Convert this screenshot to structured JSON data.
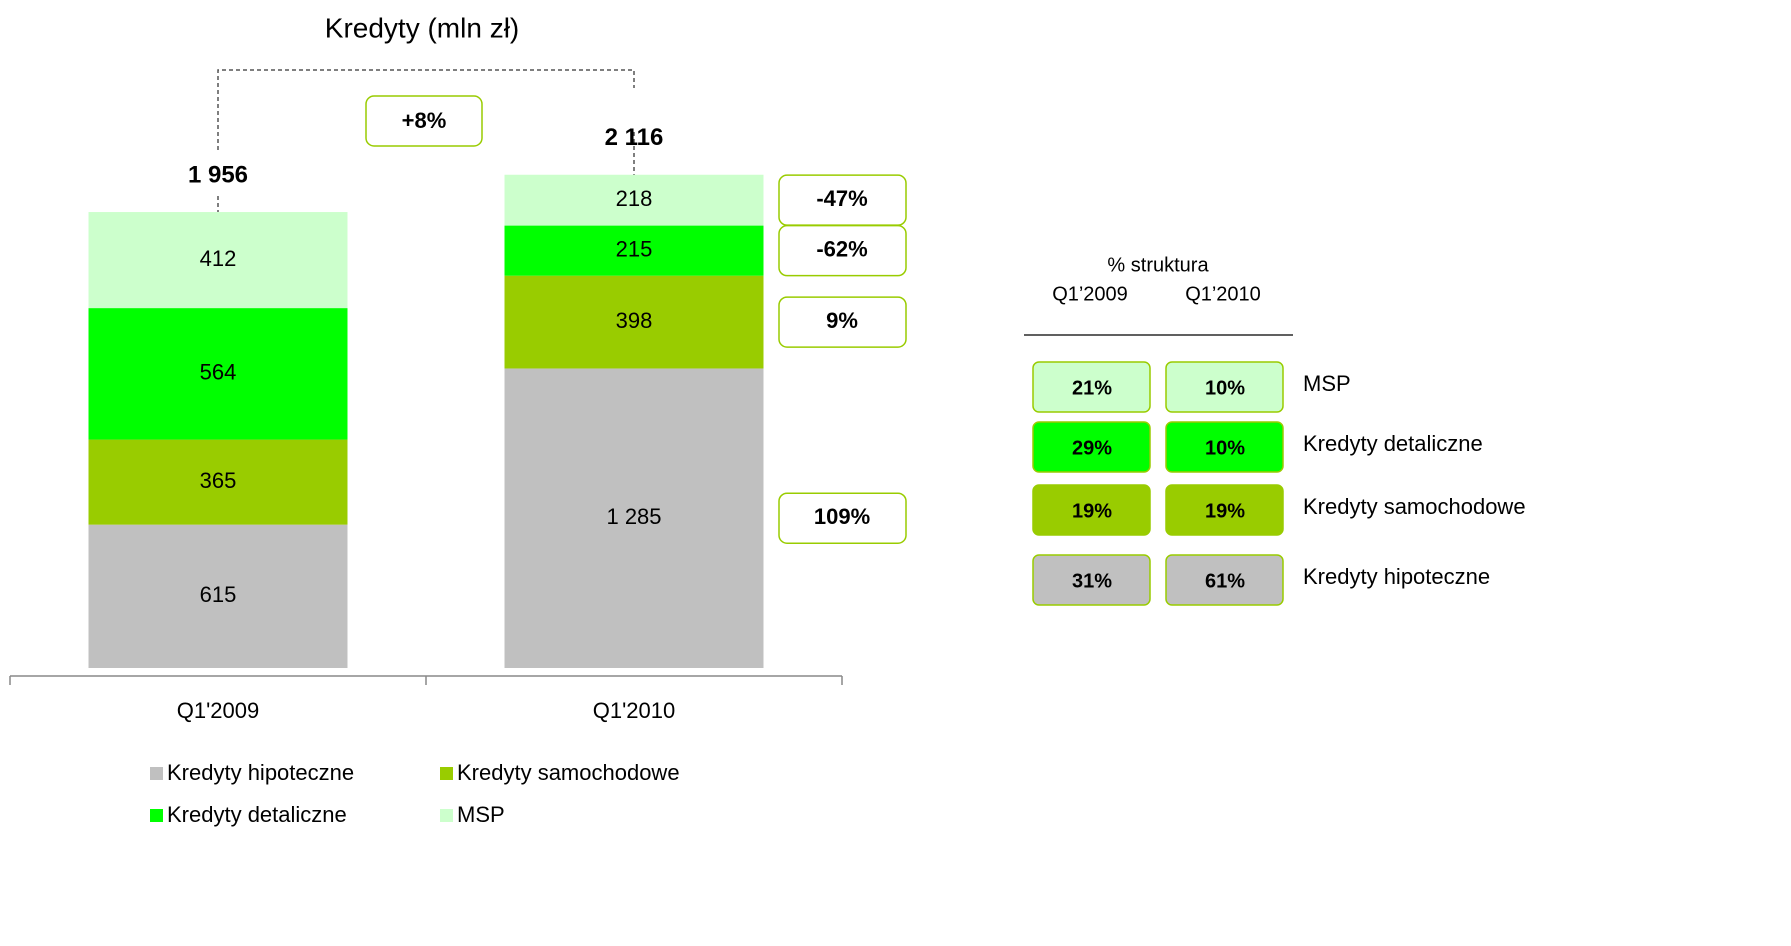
{
  "chart_data": {
    "type": "stacked_bar",
    "title": "Kredyty (mln zł)",
    "categories": [
      "Q1'2009",
      "Q1'2010"
    ],
    "series": [
      {
        "name": "Kredyty hipoteczne",
        "color": "#c0c0c0",
        "values": [
          615,
          1285
        ],
        "value_labels": [
          "615",
          "1 285"
        ],
        "change": "109%"
      },
      {
        "name": "Kredyty samochodowe",
        "color": "#99cc00",
        "values": [
          365,
          398
        ],
        "change": "9%"
      },
      {
        "name": "Kredyty detaliczne",
        "color": "#00ff00",
        "values": [
          564,
          215
        ],
        "change": "-62%"
      },
      {
        "name": "MSP",
        "color": "#ccffcc",
        "values": [
          412,
          218
        ],
        "change": "-47%"
      }
    ],
    "totals": {
      "values": [
        1956,
        2116
      ],
      "value_labels": [
        "1 956",
        "2 116"
      ]
    },
    "growth": "+8%",
    "structure": {
      "title": "% struktura",
      "columns": [
        "Q1’2009",
        "Q1’2010"
      ],
      "rows": [
        {
          "label": "MSP",
          "color": "#ccffcc",
          "values": [
            "21%",
            "10%"
          ]
        },
        {
          "label": "Kredyty detaliczne",
          "color": "#00ff00",
          "values": [
            "29%",
            "10%"
          ]
        },
        {
          "label": "Kredyty samochodowe",
          "color": "#99cc00",
          "values": [
            "19%",
            "19%"
          ]
        },
        {
          "label": "Kredyty hipoteczne",
          "color": "#c0c0c0",
          "values": [
            "31%",
            "61%"
          ]
        }
      ]
    }
  }
}
